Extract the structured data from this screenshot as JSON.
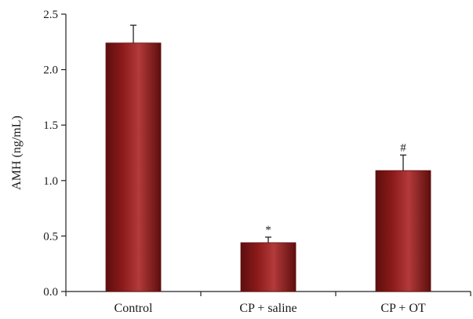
{
  "chart_data": {
    "type": "bar",
    "categories": [
      "Control",
      "CP + saline",
      "CP + OT"
    ],
    "values": [
      2.24,
      0.44,
      1.09
    ],
    "errors": [
      0.16,
      0.05,
      0.14
    ],
    "annotations": [
      "",
      "*",
      "#"
    ],
    "title": "",
    "xlabel": "",
    "ylabel": "AMH (ng/mL)",
    "ylim": [
      0,
      2.5
    ],
    "yticks": [
      0.0,
      0.5,
      1.0,
      1.5,
      2.0,
      2.5
    ],
    "ytick_labels": [
      "0.0",
      "0.5",
      "1.0",
      "1.5",
      "2.0",
      "2.5"
    ],
    "grid": false,
    "colors": {
      "bar": "#8b1a1a",
      "bar_dark": "#5e0e0e",
      "bar_light": "#b33a3a",
      "axis": "#222222"
    }
  }
}
